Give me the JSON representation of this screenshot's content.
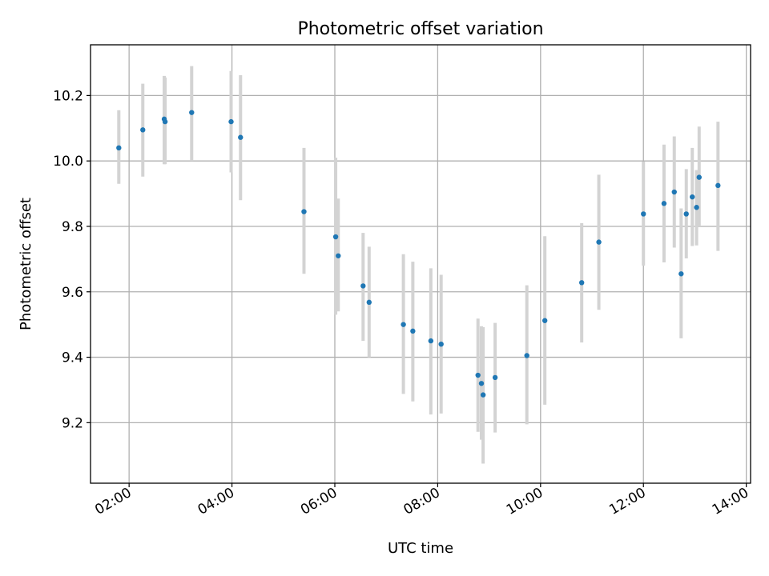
{
  "chart_data": {
    "type": "scatter",
    "title": "Photometric offset variation",
    "xlabel": "UTC time",
    "ylabel": "Photometric offset",
    "xlim": [
      "01:15",
      "14:05"
    ],
    "ylim": [
      9.015,
      10.355
    ],
    "x_ticks": [
      "02:00",
      "04:00",
      "06:00",
      "08:00",
      "10:00",
      "12:00",
      "14:00"
    ],
    "y_ticks": [
      9.2,
      9.4,
      9.6,
      9.8,
      10.0,
      10.2
    ],
    "grid": true,
    "marker_color": "#1f77b4",
    "errorbar_color": "#d3d3d3",
    "points": [
      {
        "x": "01:48",
        "y": 10.04,
        "yerr_low": 9.93,
        "yerr_high": 10.155
      },
      {
        "x": "02:16",
        "y": 10.095,
        "yerr_low": 9.952,
        "yerr_high": 10.236
      },
      {
        "x": "02:41",
        "y": 10.128,
        "yerr_low": 9.99,
        "yerr_high": 10.26
      },
      {
        "x": "02:42",
        "y": 10.12,
        "yerr_low": 9.99,
        "yerr_high": 10.255
      },
      {
        "x": "03:13",
        "y": 10.148,
        "yerr_low": 10.0,
        "yerr_high": 10.29
      },
      {
        "x": "03:59",
        "y": 10.12,
        "yerr_low": 9.965,
        "yerr_high": 10.275
      },
      {
        "x": "04:10",
        "y": 10.072,
        "yerr_low": 9.88,
        "yerr_high": 10.262
      },
      {
        "x": "05:24",
        "y": 9.845,
        "yerr_low": 9.655,
        "yerr_high": 10.04
      },
      {
        "x": "06:01",
        "y": 9.768,
        "yerr_low": 9.53,
        "yerr_high": 10.01
      },
      {
        "x": "06:04",
        "y": 9.71,
        "yerr_low": 9.54,
        "yerr_high": 9.885
      },
      {
        "x": "06:33",
        "y": 9.618,
        "yerr_low": 9.45,
        "yerr_high": 9.78
      },
      {
        "x": "06:40",
        "y": 9.568,
        "yerr_low": 9.4,
        "yerr_high": 9.738
      },
      {
        "x": "07:20",
        "y": 9.5,
        "yerr_low": 9.288,
        "yerr_high": 9.715
      },
      {
        "x": "07:31",
        "y": 9.48,
        "yerr_low": 9.265,
        "yerr_high": 9.692
      },
      {
        "x": "07:52",
        "y": 9.45,
        "yerr_low": 9.225,
        "yerr_high": 9.672
      },
      {
        "x": "08:04",
        "y": 9.44,
        "yerr_low": 9.228,
        "yerr_high": 9.652
      },
      {
        "x": "08:47",
        "y": 9.345,
        "yerr_low": 9.172,
        "yerr_high": 9.518
      },
      {
        "x": "08:51",
        "y": 9.32,
        "yerr_low": 9.148,
        "yerr_high": 9.495
      },
      {
        "x": "08:53",
        "y": 9.285,
        "yerr_low": 9.075,
        "yerr_high": 9.492
      },
      {
        "x": "09:07",
        "y": 9.338,
        "yerr_low": 9.17,
        "yerr_high": 9.505
      },
      {
        "x": "09:44",
        "y": 9.405,
        "yerr_low": 9.195,
        "yerr_high": 9.62
      },
      {
        "x": "10:05",
        "y": 9.512,
        "yerr_low": 9.255,
        "yerr_high": 9.77
      },
      {
        "x": "10:48",
        "y": 9.628,
        "yerr_low": 9.445,
        "yerr_high": 9.81
      },
      {
        "x": "11:08",
        "y": 9.752,
        "yerr_low": 9.545,
        "yerr_high": 9.958
      },
      {
        "x": "12:00",
        "y": 9.838,
        "yerr_low": 9.68,
        "yerr_high": 9.998
      },
      {
        "x": "12:24",
        "y": 9.87,
        "yerr_low": 9.69,
        "yerr_high": 10.05
      },
      {
        "x": "12:36",
        "y": 9.905,
        "yerr_low": 9.735,
        "yerr_high": 10.075
      },
      {
        "x": "12:44",
        "y": 9.655,
        "yerr_low": 9.458,
        "yerr_high": 9.855
      },
      {
        "x": "12:50",
        "y": 9.838,
        "yerr_low": 9.702,
        "yerr_high": 9.975
      },
      {
        "x": "12:57",
        "y": 9.89,
        "yerr_low": 9.74,
        "yerr_high": 10.04
      },
      {
        "x": "13:02",
        "y": 9.858,
        "yerr_low": 9.742,
        "yerr_high": 9.972
      },
      {
        "x": "13:05",
        "y": 9.95,
        "yerr_low": 9.8,
        "yerr_high": 10.105
      },
      {
        "x": "13:27",
        "y": 9.925,
        "yerr_low": 9.725,
        "yerr_high": 10.12
      }
    ]
  }
}
